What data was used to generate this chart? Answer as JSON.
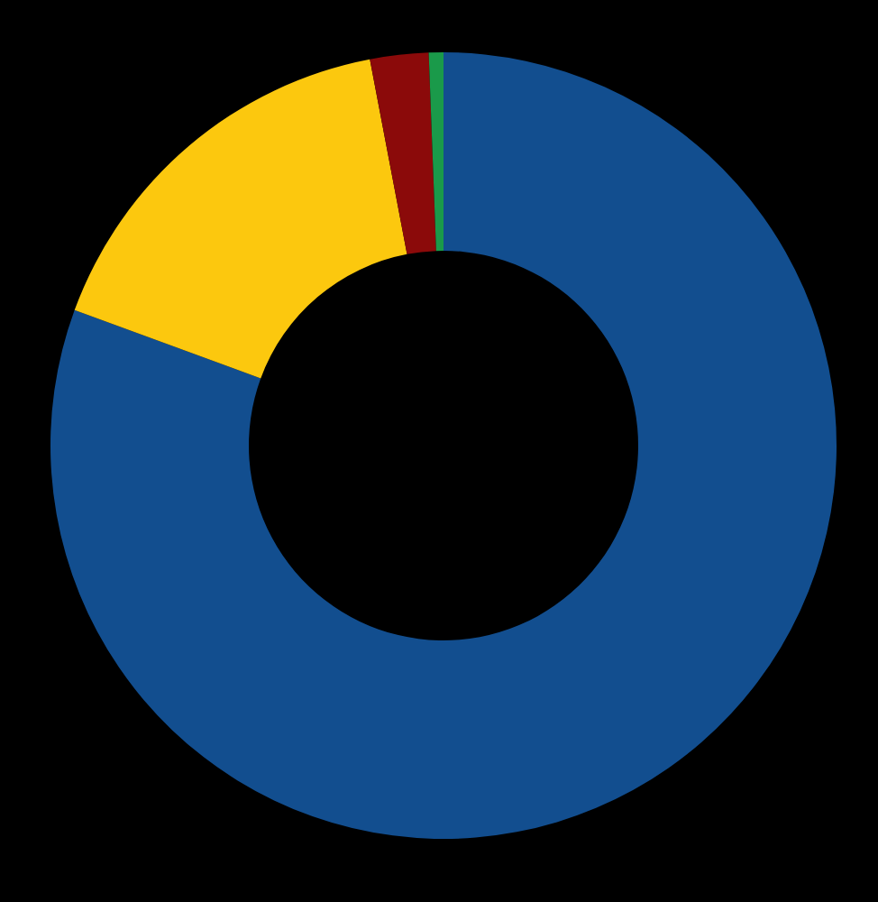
{
  "chart_data": {
    "type": "donut",
    "categories": [
      null,
      null,
      null,
      null
    ],
    "values": [
      80.6,
      16.4,
      2.4,
      0.6
    ],
    "colors": [
      "#124e8f",
      "#fcc80e",
      "#8b0a0a",
      "#1a9a4a"
    ],
    "legend": false
  }
}
